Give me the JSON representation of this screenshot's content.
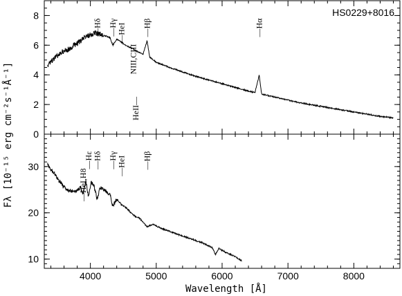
{
  "chart_data": [
    {
      "type": "line",
      "panel": "top",
      "title": "HS0229+8016",
      "xlim": [
        3300,
        8700
      ],
      "ylim": [
        0,
        9
      ],
      "xticks": [
        4000,
        5000,
        6000,
        7000,
        8000
      ],
      "yticks": [
        0,
        2,
        4,
        6,
        8
      ],
      "line_labels": [
        {
          "label": "—Hδ",
          "x": 4102
        },
        {
          "label": "—Hγ",
          "x": 4340
        },
        {
          "label": "—HeI",
          "x": 4471
        },
        {
          "label": "NIII,CIII",
          "x": 4650
        },
        {
          "label": "—Hβ",
          "x": 4861
        },
        {
          "label": "HeII—",
          "x": 4686
        },
        {
          "label": "—Hα",
          "x": 6563
        }
      ],
      "series": [
        {
          "x": [
            3350,
            3400,
            3450,
            3500,
            3550,
            3600,
            3650,
            3700,
            3750,
            3800,
            3850,
            3900,
            3950,
            4000,
            4050,
            4100,
            4150,
            4200,
            4250,
            4300,
            4340,
            4400,
            4471,
            4550,
            4600,
            4650,
            4700,
            4750,
            4800,
            4861,
            4900,
            5000,
            5200,
            5400,
            5600,
            5800,
            6000,
            6200,
            6400,
            6500,
            6563,
            6600,
            6800,
            7000,
            7200,
            7400,
            7600,
            7800,
            8000,
            8200,
            8400,
            8600
          ],
          "y": [
            4.5,
            4.9,
            5.1,
            5.3,
            5.5,
            5.6,
            5.7,
            5.8,
            6.0,
            6.1,
            6.3,
            6.5,
            6.6,
            6.7,
            6.8,
            6.8,
            6.75,
            6.65,
            6.6,
            6.5,
            6.0,
            6.4,
            6.2,
            5.95,
            5.85,
            5.75,
            5.6,
            5.5,
            5.4,
            6.3,
            5.2,
            4.85,
            4.5,
            4.2,
            3.9,
            3.65,
            3.4,
            3.15,
            2.9,
            2.8,
            4.0,
            2.7,
            2.5,
            2.3,
            2.1,
            1.95,
            1.8,
            1.65,
            1.5,
            1.35,
            1.2,
            1.1
          ]
        }
      ]
    },
    {
      "type": "line",
      "panel": "bottom",
      "xlabel": "Wavelength [Å]",
      "ylabel": "Fλ [10⁻¹⁵ erg cm⁻²s⁻¹Å⁻¹]",
      "xlim": [
        3300,
        8700
      ],
      "ylim": [
        8,
        37
      ],
      "xticks": [
        4000,
        5000,
        6000,
        7000,
        8000
      ],
      "yticks": [
        10,
        20,
        30
      ],
      "line_labels": [
        {
          "label": "—HeI,H8",
          "x": 3889
        },
        {
          "label": "—Hε",
          "x": 3970
        },
        {
          "label": "—Hδ",
          "x": 4102
        },
        {
          "label": "—Hγ",
          "x": 4340
        },
        {
          "label": "—HeI",
          "x": 4471
        },
        {
          "label": "—Hβ",
          "x": 4861
        }
      ],
      "series": [
        {
          "x": [
            3350,
            3400,
            3450,
            3500,
            3550,
            3600,
            3650,
            3700,
            3750,
            3800,
            3850,
            3889,
            3930,
            3970,
            4010,
            4050,
            4102,
            4150,
            4200,
            4250,
            4300,
            4340,
            4400,
            4471,
            4550,
            4650,
            4750,
            4861,
            4950,
            5100,
            5300,
            5500,
            5700,
            5850,
            5900,
            5950,
            6050,
            6200,
            6300
          ],
          "y": [
            30.5,
            29.5,
            28.5,
            27.5,
            26.5,
            25.5,
            25.0,
            24.8,
            24.6,
            24.8,
            25.5,
            24.0,
            27.0,
            23.5,
            26.5,
            26.0,
            23.0,
            25.5,
            25.0,
            24.5,
            23.8,
            21.5,
            23.0,
            21.8,
            21.0,
            19.5,
            18.8,
            17.0,
            17.5,
            16.5,
            15.5,
            14.5,
            13.5,
            12.5,
            11.0,
            12.3,
            11.5,
            10.5,
            9.6
          ]
        }
      ]
    }
  ]
}
